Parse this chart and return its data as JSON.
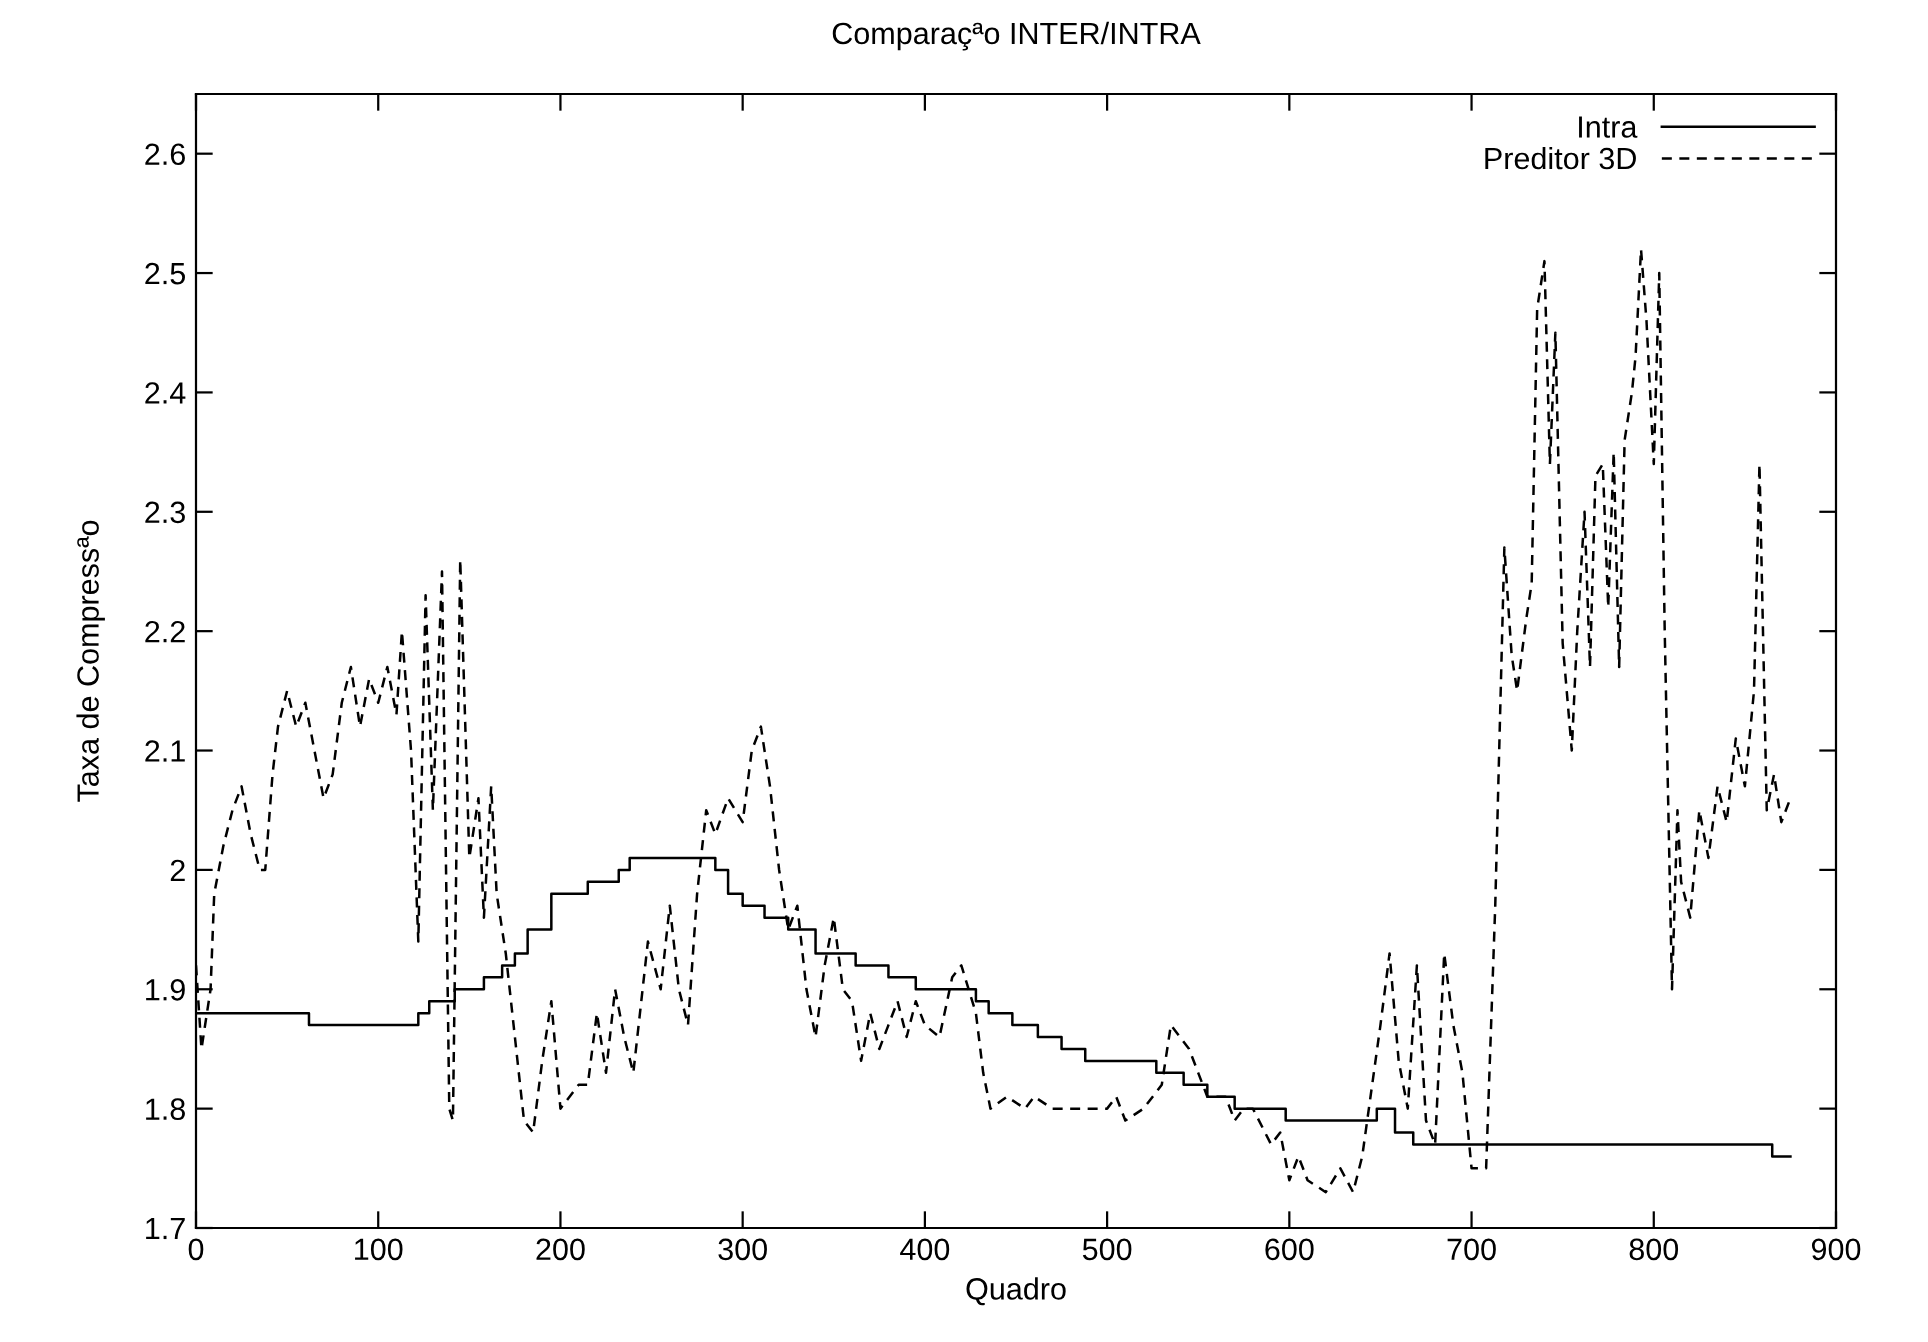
{
  "chart_data": {
    "type": "line",
    "title": "Comparaçªo INTER/INTRA",
    "xlabel": "Quadro",
    "ylabel": "Taxa de Compressªo",
    "xlim": [
      0,
      900
    ],
    "xticks": [
      0,
      100,
      200,
      300,
      400,
      500,
      600,
      700,
      800,
      900
    ],
    "ylim": [
      1.7,
      2.65
    ],
    "yticks": [
      1.7,
      1.8,
      1.9,
      2,
      2.1,
      2.2,
      2.3,
      2.4,
      2.5,
      2.6
    ],
    "legend": "top right",
    "grid": false,
    "series": [
      {
        "name": "Intra",
        "type": "step",
        "color": "#000000",
        "line_style": "solid",
        "x": [
          0,
          62,
          122,
          128,
          135,
          142,
          158,
          168,
          175,
          182,
          195,
          215,
          232,
          238,
          285,
          292,
          300,
          312,
          325,
          340,
          362,
          380,
          395,
          428,
          435,
          448,
          462,
          475,
          488,
          515,
          527,
          542,
          555,
          570,
          598,
          648,
          658,
          668,
          865,
          875
        ],
        "values": [
          1.88,
          1.87,
          1.88,
          1.89,
          1.89,
          1.9,
          1.91,
          1.92,
          1.93,
          1.95,
          1.98,
          1.99,
          2.0,
          2.01,
          2.0,
          1.98,
          1.97,
          1.96,
          1.95,
          1.93,
          1.92,
          1.91,
          1.9,
          1.89,
          1.88,
          1.87,
          1.86,
          1.85,
          1.84,
          1.84,
          1.83,
          1.82,
          1.81,
          1.8,
          1.79,
          1.8,
          1.78,
          1.77,
          1.76,
          1.76
        ]
      },
      {
        "name": "Preditor 3D",
        "color": "#000000",
        "line_style": "dashed",
        "x": [
          0,
          3,
          8,
          10,
          15,
          20,
          25,
          30,
          35,
          38,
          42,
          45,
          50,
          55,
          60,
          65,
          70,
          75,
          80,
          85,
          90,
          95,
          100,
          105,
          110,
          113,
          118,
          122,
          126,
          130,
          135,
          139,
          141,
          145,
          150,
          155,
          158,
          162,
          165,
          170,
          175,
          180,
          185,
          190,
          195,
          200,
          210,
          215,
          220,
          225,
          230,
          235,
          240,
          248,
          255,
          260,
          265,
          270,
          275,
          280,
          285,
          292,
          300,
          305,
          310,
          315,
          320,
          325,
          330,
          335,
          340,
          345,
          350,
          355,
          360,
          365,
          370,
          375,
          380,
          385,
          390,
          395,
          400,
          408,
          415,
          420,
          428,
          432,
          436,
          445,
          455,
          460,
          470,
          480,
          490,
          500,
          505,
          510,
          520,
          530,
          535,
          540,
          545,
          550,
          555,
          565,
          570,
          575,
          580,
          590,
          595,
          600,
          605,
          610,
          620,
          628,
          635,
          640,
          650,
          655,
          660,
          665,
          670,
          675,
          680,
          685,
          690,
          695,
          700,
          705,
          708,
          713,
          718,
          722,
          725,
          730,
          733,
          736,
          740,
          743,
          746,
          750,
          755,
          758,
          762,
          765,
          768,
          772,
          775,
          778,
          781,
          784,
          788,
          790,
          793,
          796,
          800,
          803,
          806,
          810,
          813,
          815,
          820,
          825,
          830,
          835,
          840,
          845,
          850,
          855,
          858,
          862,
          866,
          870,
          875
        ],
        "values": [
          1.92,
          1.85,
          1.9,
          1.98,
          2.02,
          2.05,
          2.07,
          2.03,
          2.0,
          2.0,
          2.08,
          2.12,
          2.15,
          2.12,
          2.14,
          2.1,
          2.06,
          2.08,
          2.14,
          2.17,
          2.12,
          2.16,
          2.14,
          2.17,
          2.13,
          2.2,
          2.1,
          1.94,
          2.23,
          2.05,
          2.25,
          1.8,
          1.79,
          2.26,
          2.01,
          2.06,
          1.96,
          2.07,
          1.98,
          1.93,
          1.86,
          1.79,
          1.78,
          1.84,
          1.89,
          1.8,
          1.82,
          1.82,
          1.88,
          1.83,
          1.9,
          1.86,
          1.83,
          1.94,
          1.9,
          1.97,
          1.9,
          1.87,
          1.98,
          2.05,
          2.03,
          2.06,
          2.04,
          2.1,
          2.12,
          2.07,
          2.0,
          1.95,
          1.97,
          1.9,
          1.86,
          1.92,
          1.96,
          1.9,
          1.89,
          1.84,
          1.88,
          1.85,
          1.87,
          1.89,
          1.86,
          1.89,
          1.87,
          1.86,
          1.91,
          1.92,
          1.88,
          1.83,
          1.8,
          1.81,
          1.8,
          1.81,
          1.8,
          1.8,
          1.8,
          1.8,
          1.81,
          1.79,
          1.8,
          1.82,
          1.87,
          1.86,
          1.85,
          1.83,
          1.81,
          1.81,
          1.79,
          1.8,
          1.8,
          1.77,
          1.78,
          1.74,
          1.76,
          1.74,
          1.73,
          1.75,
          1.73,
          1.76,
          1.87,
          1.93,
          1.84,
          1.8,
          1.92,
          1.79,
          1.77,
          1.93,
          1.87,
          1.83,
          1.75,
          1.75,
          1.75,
          1.97,
          2.27,
          2.18,
          2.15,
          2.21,
          2.24,
          2.47,
          2.51,
          2.34,
          2.45,
          2.19,
          2.1,
          2.2,
          2.3,
          2.17,
          2.33,
          2.34,
          2.22,
          2.35,
          2.17,
          2.36,
          2.4,
          2.43,
          2.52,
          2.46,
          2.34,
          2.5,
          2.2,
          1.9,
          2.05,
          1.99,
          1.96,
          2.05,
          2.01,
          2.07,
          2.04,
          2.11,
          2.07,
          2.15,
          2.34,
          2.05,
          2.08,
          2.04,
          2.06
        ]
      }
    ]
  }
}
